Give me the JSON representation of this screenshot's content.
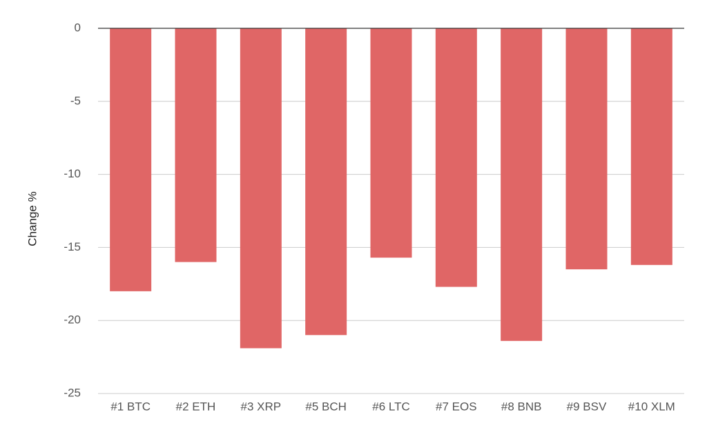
{
  "chart_data": {
    "type": "bar",
    "title": "",
    "xlabel": "",
    "ylabel": "Change %",
    "categories": [
      "#1 BTC",
      "#2 ETH",
      "#3 XRP",
      "#5 BCH",
      "#6 LTC",
      "#7 EOS",
      "#8 BNB",
      "#9 BSV",
      "#10 XLM"
    ],
    "values": [
      -18.0,
      -16.0,
      -21.9,
      -21.0,
      -15.7,
      -17.7,
      -21.4,
      -16.5,
      -16.2
    ],
    "ylim": [
      -25,
      0
    ],
    "yticks": [
      0,
      -5,
      -10,
      -15,
      -20,
      -25
    ],
    "ytick_labels": [
      "0",
      "-5",
      "-10",
      "-15",
      "-20",
      "-25"
    ],
    "grid": true,
    "legend": "none",
    "bar_color": "#e06666",
    "gridline_color": "#cccccc",
    "baseline_color": "#333333"
  }
}
